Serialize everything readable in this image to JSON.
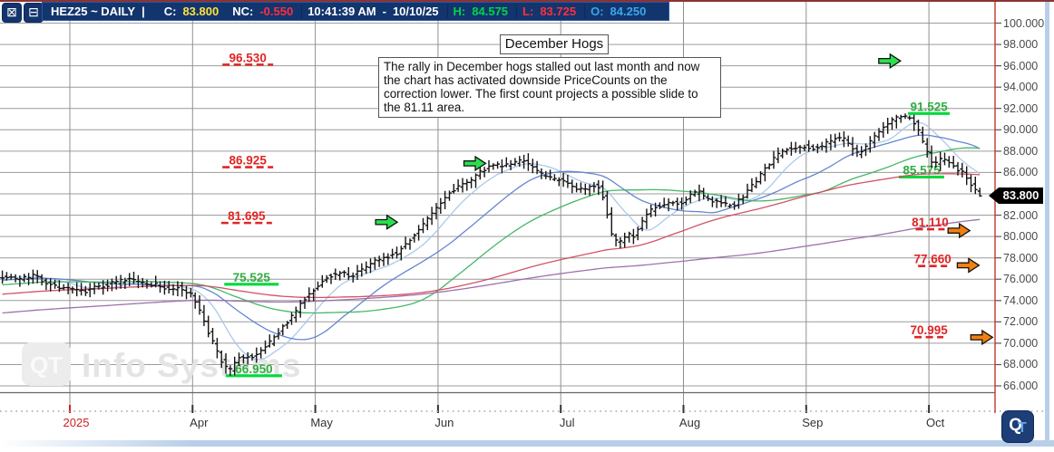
{
  "quote_bar": {
    "buttons": [
      {
        "name": "close-window",
        "glyph": "⊠"
      },
      {
        "name": "collapse-window",
        "glyph": "⊟"
      }
    ],
    "symbol": "HEZ25 ~ DAILY",
    "pipe": "|",
    "close_label": "C:",
    "close_value": "83.800",
    "nc_label": "NC:",
    "nc_value": "-0.550",
    "time": "10:41:39 AM",
    "time_sep": "-",
    "date": "10/10/25",
    "high_label": "H:",
    "high_value": "84.575",
    "low_label": "L:",
    "low_value": "83.725",
    "open_label": "O:",
    "open_value": "84.250",
    "colors": {
      "bar_bg": "#13356d",
      "symbol": "#ffffff",
      "close": "#ffe23c",
      "nc": "#ff2e3e",
      "time": "#ffffff",
      "high": "#00d34a",
      "low": "#ff2e3e",
      "open": "#3aa8e8"
    }
  },
  "branding": {
    "watermark_logo": "QT",
    "watermark_text": "Info Systems",
    "corner_logo_q": "Q",
    "corner_logo_t": "T"
  },
  "chart_data": {
    "type": "ohlc-bar",
    "title": "December Hogs",
    "annotation": "The rally in December hogs stalled out last month and now the chart has activated downside PriceCounts on the correction lower.  The first count projects a possible slide to the 81.11 area.",
    "current_price_label": "83.800",
    "x_axis": {
      "tick_labels": [
        "2025",
        "Apr",
        "May",
        "Jun",
        "Jul",
        "Aug",
        "Sep",
        "Oct"
      ],
      "year_tick_color": "#cc2222"
    },
    "y_axis": {
      "min": 66,
      "max": 100,
      "step": 2,
      "tick_labels": [
        "100.000",
        "98.000",
        "96.000",
        "94.000",
        "92.000",
        "90.000",
        "88.000",
        "86.000",
        "84.000",
        "82.000",
        "80.000",
        "78.000",
        "76.000",
        "74.000",
        "72.000",
        "70.000",
        "68.000",
        "66.000"
      ]
    },
    "last_bar": {
      "open": 84.25,
      "high": 84.575,
      "low": 83.725,
      "close": 83.8
    },
    "extremes": {
      "contract_high": 91.525,
      "contract_low": 66.95
    },
    "price_path_anchors": [
      [
        -0.57,
        76.3
      ],
      [
        -0.42,
        76.0
      ],
      [
        -0.3,
        76.3
      ],
      [
        -0.13,
        75.4
      ],
      [
        0.0,
        75.0
      ],
      [
        0.1,
        74.8
      ],
      [
        0.22,
        75.3
      ],
      [
        0.35,
        75.6
      ],
      [
        0.48,
        76.0
      ],
      [
        0.58,
        75.7
      ],
      [
        0.7,
        75.5
      ],
      [
        0.8,
        75.0
      ],
      [
        0.88,
        75.3
      ],
      [
        1.0,
        74.4
      ],
      [
        1.07,
        72.6
      ],
      [
        1.16,
        70.2
      ],
      [
        1.24,
        68.2
      ],
      [
        1.3,
        67.3
      ],
      [
        1.37,
        68.6
      ],
      [
        1.47,
        68.7
      ],
      [
        1.56,
        69.2
      ],
      [
        1.65,
        70.3
      ],
      [
        1.74,
        71.6
      ],
      [
        1.84,
        73.0
      ],
      [
        1.93,
        74.5
      ],
      [
        2.0,
        75.2
      ],
      [
        2.1,
        76.3
      ],
      [
        2.21,
        76.6
      ],
      [
        2.3,
        76.3
      ],
      [
        2.39,
        77.0
      ],
      [
        2.48,
        77.7
      ],
      [
        2.58,
        78.1
      ],
      [
        2.67,
        78.5
      ],
      [
        2.76,
        79.6
      ],
      [
        2.85,
        80.8
      ],
      [
        2.94,
        82.0
      ],
      [
        3.0,
        82.8
      ],
      [
        3.09,
        84.0
      ],
      [
        3.18,
        84.9
      ],
      [
        3.27,
        85.4
      ],
      [
        3.36,
        86.1
      ],
      [
        3.44,
        86.8
      ],
      [
        3.53,
        86.6
      ],
      [
        3.62,
        87.0
      ],
      [
        3.69,
        87.2
      ],
      [
        3.77,
        86.4
      ],
      [
        3.86,
        85.7
      ],
      [
        3.95,
        85.4
      ],
      [
        4.0,
        85.3
      ],
      [
        4.1,
        84.5
      ],
      [
        4.19,
        84.3
      ],
      [
        4.27,
        84.8
      ],
      [
        4.33,
        84.4
      ],
      [
        4.38,
        82.0
      ],
      [
        4.42,
        79.9
      ],
      [
        4.47,
        79.3
      ],
      [
        4.53,
        80.2
      ],
      [
        4.59,
        80.0
      ],
      [
        4.65,
        81.3
      ],
      [
        4.72,
        82.4
      ],
      [
        4.79,
        82.9
      ],
      [
        4.85,
        82.9
      ],
      [
        4.92,
        83.2
      ],
      [
        5.0,
        83.1
      ],
      [
        5.06,
        83.9
      ],
      [
        5.12,
        84.2
      ],
      [
        5.18,
        83.7
      ],
      [
        5.24,
        83.2
      ],
      [
        5.3,
        83.1
      ],
      [
        5.36,
        82.9
      ],
      [
        5.41,
        83.0
      ],
      [
        5.47,
        83.5
      ],
      [
        5.53,
        84.3
      ],
      [
        5.59,
        85.2
      ],
      [
        5.65,
        86.1
      ],
      [
        5.71,
        86.9
      ],
      [
        5.77,
        87.7
      ],
      [
        5.83,
        88.1
      ],
      [
        5.89,
        88.2
      ],
      [
        5.95,
        88.4
      ],
      [
        6.0,
        88.5
      ],
      [
        6.06,
        88.3
      ],
      [
        6.12,
        88.5
      ],
      [
        6.18,
        88.8
      ],
      [
        6.24,
        89.1
      ],
      [
        6.3,
        89.2
      ],
      [
        6.36,
        88.5
      ],
      [
        6.41,
        87.8
      ],
      [
        6.47,
        88.2
      ],
      [
        6.53,
        88.9
      ],
      [
        6.59,
        89.9
      ],
      [
        6.65,
        90.6
      ],
      [
        6.71,
        91.0
      ],
      [
        6.77,
        91.2
      ],
      [
        6.83,
        91.3
      ],
      [
        6.89,
        90.6
      ],
      [
        6.93,
        89.3
      ],
      [
        6.98,
        88.0
      ],
      [
        7.0,
        87.2
      ],
      [
        7.04,
        86.8
      ],
      [
        7.1,
        87.2
      ],
      [
        7.15,
        87.1
      ],
      [
        7.2,
        86.6
      ],
      [
        7.25,
        86.2
      ],
      [
        7.3,
        85.6
      ],
      [
        7.35,
        84.8
      ],
      [
        7.39,
        84.1
      ],
      [
        7.425,
        83.8
      ]
    ],
    "moving_averages": [
      {
        "period": 10,
        "color": "#a7c6ea"
      },
      {
        "period": 25,
        "color": "#5e7fd0"
      },
      {
        "period": 50,
        "color": "#3cb35f"
      },
      {
        "period": 100,
        "color": "#d04a5e"
      },
      {
        "period": 200,
        "color": "#9a6aa8"
      }
    ],
    "swing_labels": [
      {
        "text": "91.525",
        "t": 7.0,
        "price": 91.525,
        "w": 46
      },
      {
        "text": "85.575",
        "t": 6.94,
        "price": 85.575,
        "w": 50
      },
      {
        "text": "75.525",
        "t": 1.48,
        "price": 75.525,
        "w": 60
      },
      {
        "text": "66.950",
        "t": 1.5,
        "price": 66.95,
        "w": 62
      }
    ],
    "count_labels": [
      {
        "text": "96.530",
        "t": 1.45,
        "price": 96.53,
        "w": 56
      },
      {
        "text": "86.925",
        "t": 1.45,
        "price": 86.925,
        "w": 56
      },
      {
        "text": "81.695",
        "t": 1.44,
        "price": 81.695,
        "w": 56
      },
      {
        "text": "81.110",
        "t": 7.01,
        "price": 81.11,
        "w": 32
      },
      {
        "text": "77.660",
        "t": 7.03,
        "price": 77.66,
        "w": 32
      },
      {
        "text": "70.995",
        "t": 7.0,
        "price": 70.995,
        "w": 32
      }
    ],
    "arrows": {
      "green_color": "#2ae04e",
      "orange_color": "#f2800f",
      "green": [
        {
          "t": 6.68,
          "price": 96.45
        },
        {
          "t": 3.3,
          "price": 86.85
        },
        {
          "t": 2.58,
          "price": 81.35
        }
      ],
      "orange": [
        {
          "t": 7.245,
          "price": 80.55
        },
        {
          "t": 7.32,
          "price": 77.3
        },
        {
          "t": 7.43,
          "price": 70.55
        }
      ]
    },
    "colors": {
      "bars": "#141414",
      "grid": "#9c9c9c",
      "axis_text": "#4a4a4a",
      "swing_green": "#2fae3f",
      "swing_underline": "#00d93c",
      "count_red": "#e02525",
      "current_price_line": "#c0392b"
    }
  }
}
